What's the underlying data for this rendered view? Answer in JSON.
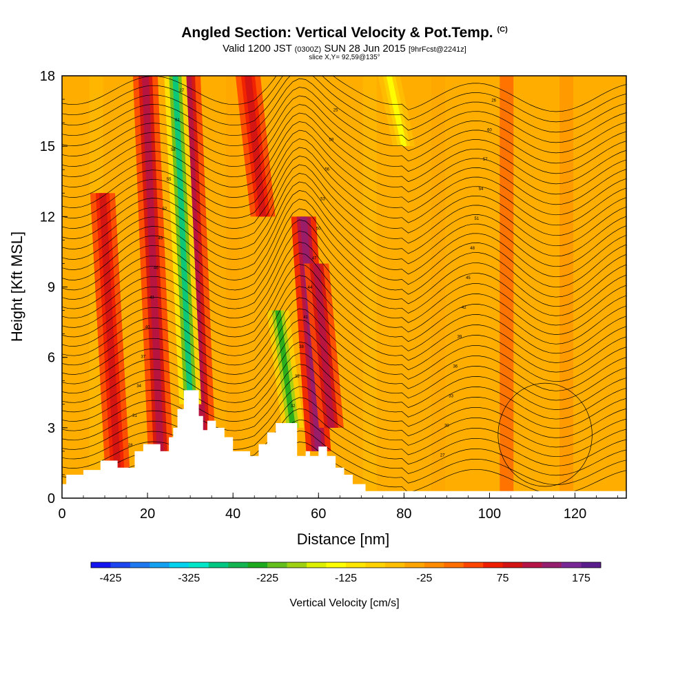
{
  "header": {
    "title": "Angled Section: Vertical Velocity & Pot.Temp.",
    "title_units": "(C)",
    "valid_prefix": "Valid 1200 JST",
    "valid_zulu": "(0300Z)",
    "valid_date": "SUN 28 Jun 2015",
    "valid_forecast": "[9hrFcst@2241z]",
    "slice": "slice X,Y= 92,59@135°"
  },
  "chart_data": {
    "type": "heatmap",
    "xlabel": "Distance [nm]",
    "ylabel": "Height [Kft MSL]",
    "xlim": [
      0,
      132
    ],
    "ylim": [
      0,
      18
    ],
    "x_ticks": [
      0,
      20,
      40,
      60,
      80,
      100,
      120
    ],
    "y_ticks": [
      0,
      3,
      6,
      9,
      12,
      15,
      18
    ],
    "field": "Vertical Velocity (shaded) with Potential Temperature contours",
    "colorbar": {
      "title": "Vertical Velocity [cm/s]",
      "tick_labels": [
        -425,
        -325,
        -225,
        -125,
        -25,
        75,
        175
      ],
      "range": [
        -450,
        200
      ],
      "colors": [
        "#1414f0",
        "#1e46f0",
        "#1e78f0",
        "#14a0f0",
        "#00d2f0",
        "#00e6c8",
        "#00c882",
        "#14b450",
        "#1eaa1e",
        "#64be1e",
        "#a0d214",
        "#dcf000",
        "#ffff00",
        "#ffe600",
        "#ffd200",
        "#ffbe00",
        "#ffa500",
        "#ff8c00",
        "#ff6e00",
        "#ff4600",
        "#f01e00",
        "#d21414",
        "#b41446",
        "#961e6e",
        "#782896",
        "#5a1e8c"
      ]
    },
    "updrafts_cm_s": [
      {
        "x": 13,
        "z_range": [
          1,
          13
        ],
        "value": 80
      },
      {
        "x": 23,
        "z_range": [
          2,
          18
        ],
        "value": 120
      },
      {
        "x": 33,
        "z_range": [
          2,
          18
        ],
        "value": 100
      },
      {
        "x": 47,
        "z_range": [
          12,
          18
        ],
        "value": 90
      },
      {
        "x": 60,
        "z_range": [
          2,
          12
        ],
        "value": 130
      },
      {
        "x": 63,
        "z_range": [
          3,
          10
        ],
        "value": 100
      }
    ],
    "downdrafts_cm_s": [
      {
        "x": 30,
        "z_range": [
          4,
          18
        ],
        "value": -300
      },
      {
        "x": 54,
        "z_range": [
          3,
          8
        ],
        "value": -250
      },
      {
        "x": 80,
        "z_range": [
          15,
          18
        ],
        "value": -130
      }
    ],
    "terrain_kft": [
      {
        "x": 0,
        "z": 0.6
      },
      {
        "x": 1,
        "z": 1.0
      },
      {
        "x": 5,
        "z": 1.2
      },
      {
        "x": 9,
        "z": 1.6
      },
      {
        "x": 13,
        "z": 1.3
      },
      {
        "x": 17,
        "z": 2.0
      },
      {
        "x": 19,
        "z": 2.3
      },
      {
        "x": 22,
        "z": 2.3
      },
      {
        "x": 23,
        "z": 2.0
      },
      {
        "x": 25,
        "z": 2.6
      },
      {
        "x": 26,
        "z": 3.0
      },
      {
        "x": 27,
        "z": 3.8
      },
      {
        "x": 28.5,
        "z": 4.6
      },
      {
        "x": 31,
        "z": 4.6
      },
      {
        "x": 32,
        "z": 3.5
      },
      {
        "x": 33,
        "z": 2.9
      },
      {
        "x": 34,
        "z": 3.3
      },
      {
        "x": 36,
        "z": 3.0
      },
      {
        "x": 38,
        "z": 2.6
      },
      {
        "x": 40,
        "z": 2.0
      },
      {
        "x": 42,
        "z": 2.0
      },
      {
        "x": 44,
        "z": 1.8
      },
      {
        "x": 46,
        "z": 2.3
      },
      {
        "x": 48,
        "z": 2.8
      },
      {
        "x": 50,
        "z": 3.2
      },
      {
        "x": 53,
        "z": 3.2
      },
      {
        "x": 55,
        "z": 1.8
      },
      {
        "x": 57,
        "z": 2.0
      },
      {
        "x": 58,
        "z": 1.8
      },
      {
        "x": 60,
        "z": 2.2
      },
      {
        "x": 62,
        "z": 1.8
      },
      {
        "x": 64,
        "z": 1.3
      },
      {
        "x": 66,
        "z": 1.0
      },
      {
        "x": 68,
        "z": 0.6
      },
      {
        "x": 71,
        "z": 0.3
      },
      {
        "x": 132,
        "z": 0.3
      }
    ],
    "contour_labels": [
      "25",
      "26",
      "27",
      "28",
      "29",
      "30",
      "31",
      "32",
      "33",
      "34",
      "35",
      "36",
      "37",
      "38",
      "39",
      "40",
      "41",
      "42",
      "43",
      "44",
      "45",
      "46",
      "47",
      "48",
      "49",
      "50",
      "51",
      "52",
      "53",
      "54",
      "55",
      "56",
      "57",
      "58",
      "59",
      "60",
      "61"
    ]
  }
}
